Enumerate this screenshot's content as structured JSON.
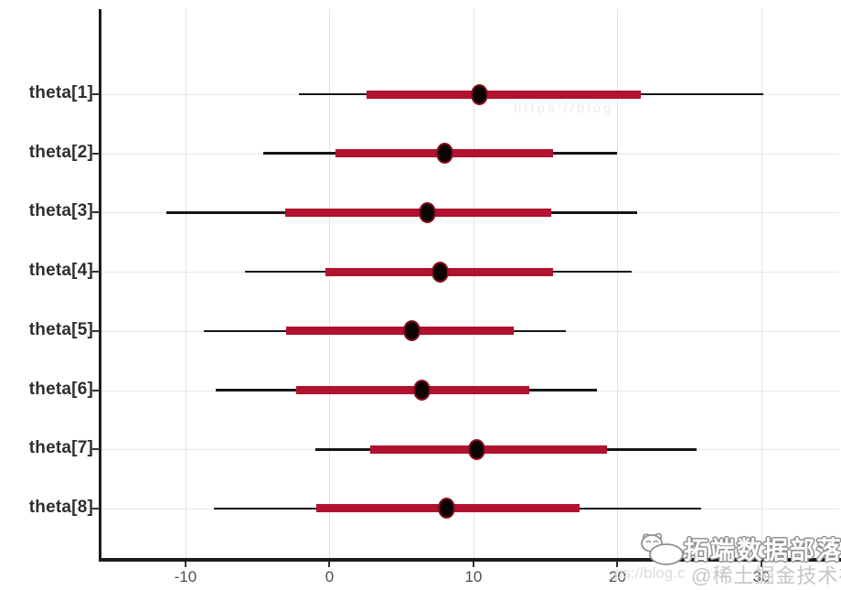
{
  "chart_data": {
    "type": "interval",
    "title": "",
    "xlabel": "",
    "ylabel": "",
    "x_ticks": [
      -10,
      0,
      10,
      20,
      30
    ],
    "x_range": [
      -15.9,
      35.4
    ],
    "grid": "light-gray major gridlines, white background",
    "legend": "none",
    "description": "Posterior interval (forest) plot: thick red bar = inner 50% interval, thin black line = outer 90% interval, black dot = point estimate",
    "series": [
      {
        "label": "theta[1]",
        "outer": [
          -2.1,
          30.1
        ],
        "inner": [
          2.6,
          21.6
        ],
        "point": 10.4
      },
      {
        "label": "theta[2]",
        "outer": [
          -4.6,
          20.0
        ],
        "inner": [
          0.4,
          15.5
        ],
        "point": 8.0
      },
      {
        "label": "theta[3]",
        "outer": [
          -11.3,
          21.4
        ],
        "inner": [
          -3.1,
          15.4
        ],
        "point": 6.8
      },
      {
        "label": "theta[4]",
        "outer": [
          -5.9,
          21.0
        ],
        "inner": [
          -0.3,
          15.5
        ],
        "point": 7.7
      },
      {
        "label": "theta[5]",
        "outer": [
          -8.7,
          16.4
        ],
        "inner": [
          -3.0,
          12.8
        ],
        "point": 5.7
      },
      {
        "label": "theta[6]",
        "outer": [
          -7.9,
          18.6
        ],
        "inner": [
          -2.3,
          13.9
        ],
        "point": 6.4
      },
      {
        "label": "theta[7]",
        "outer": [
          -1.0,
          25.5
        ],
        "inner": [
          2.8,
          19.3
        ],
        "point": 10.2
      },
      {
        "label": "theta[8]",
        "outer": [
          -8.0,
          25.8
        ],
        "inner": [
          -0.9,
          17.4
        ],
        "point": 8.1
      }
    ],
    "colors": {
      "inner_bar": "#b1122f",
      "outer_line": "#161616",
      "point_fill": "#0c0402",
      "point_ring": "#8a0f1f",
      "gridline": "#e3e3e3",
      "axis": "#1c1c1c",
      "y_label": "#2e2e2e",
      "x_label": "#4d4d4d"
    }
  },
  "watermark": {
    "brand_text": "拓端数据部落",
    "community_text": "@稀土掘金技术社区",
    "url_fragment_bottom": "ps://blog.c",
    "url_fragment_top": "https://blog"
  }
}
